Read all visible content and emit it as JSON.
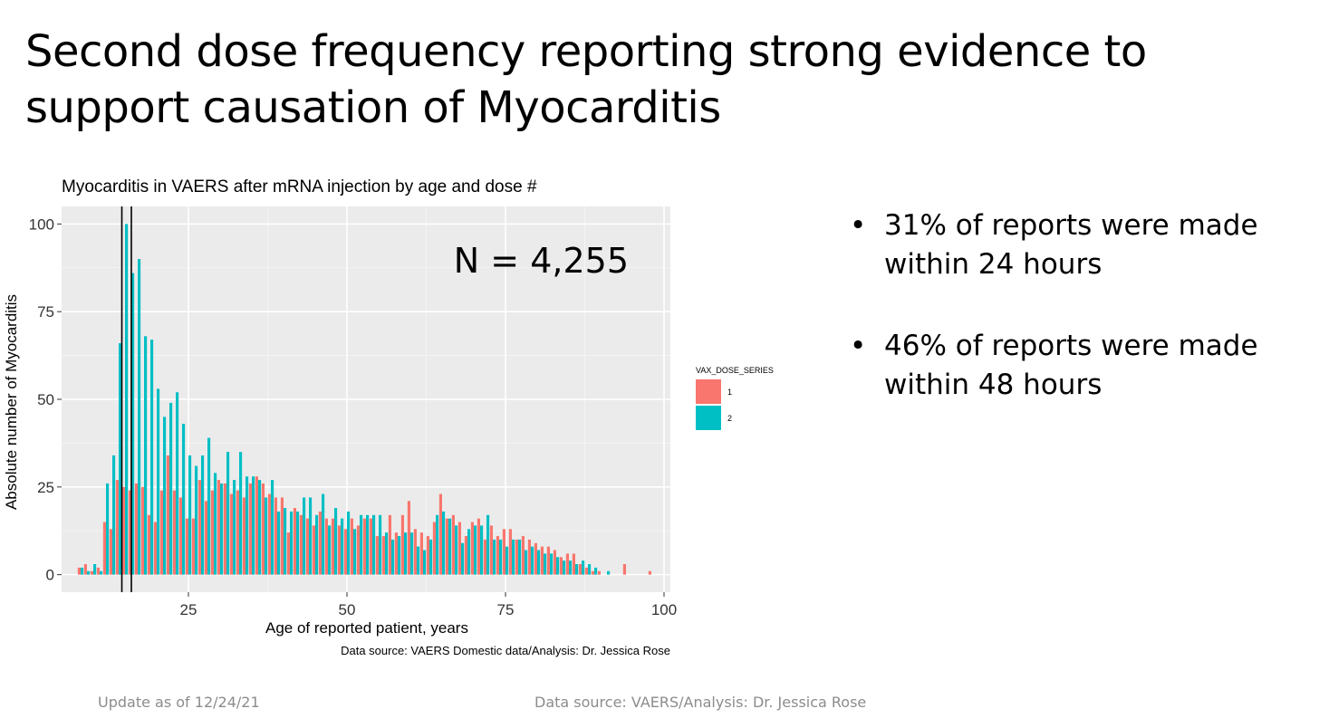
{
  "slide": {
    "title": "Second dose frequency reporting strong evidence to support causation of Myocarditis",
    "bullets": [
      "31% of reports were made within 24 hours",
      "46% of reports were made within 48 hours"
    ],
    "footer_left": "Update as of 12/24/21",
    "footer_right": "Data source: VAERS/Analysis: Dr. Jessica Rose",
    "bullet_glyph": "•"
  },
  "chart_data": {
    "type": "bar",
    "title": "Myocarditis in VAERS after mRNA injection by age and dose #",
    "xlabel": "Age of reported patient, years",
    "ylabel": "Absolute number of Myocarditis",
    "caption": "Data source: VAERS Domestic data/Analysis: Dr. Jessica Rose",
    "annotation": "N = 4,255",
    "xlim": [
      5,
      101
    ],
    "ylim": [
      -5,
      105
    ],
    "xticks": [
      25,
      50,
      75,
      100
    ],
    "yticks": [
      0,
      25,
      50,
      75,
      100
    ],
    "vlines": [
      14.5,
      16
    ],
    "legend": {
      "title": "VAX_DOSE_SERIES",
      "position": "right"
    },
    "grid": true,
    "panel_color": "#ebebeb",
    "series_colors": {
      "1": "#f8766d",
      "2": "#00bfc4"
    },
    "x": [
      8,
      9,
      10,
      11,
      12,
      13,
      14,
      15,
      16,
      17,
      18,
      19,
      20,
      21,
      22,
      23,
      24,
      25,
      26,
      27,
      28,
      29,
      30,
      31,
      32,
      33,
      34,
      35,
      36,
      37,
      38,
      39,
      40,
      41,
      42,
      43,
      44,
      45,
      46,
      47,
      48,
      49,
      50,
      51,
      52,
      53,
      54,
      55,
      56,
      57,
      58,
      59,
      60,
      61,
      62,
      63,
      64,
      65,
      66,
      67,
      68,
      69,
      70,
      71,
      72,
      73,
      74,
      75,
      76,
      77,
      78,
      79,
      80,
      81,
      82,
      83,
      84,
      85,
      86,
      87,
      88,
      89,
      90,
      91,
      94,
      98
    ],
    "series": [
      {
        "name": "1",
        "values": [
          2,
          3,
          1,
          2,
          15,
          13,
          27,
          25,
          24,
          26,
          25,
          17,
          15,
          24,
          34,
          24,
          22,
          16,
          16,
          27,
          21,
          24,
          27,
          26,
          23,
          24,
          22,
          26,
          28,
          26,
          23,
          22,
          22,
          12,
          19,
          17,
          16,
          14,
          18,
          16,
          16,
          14,
          13,
          16,
          14,
          16,
          16,
          11,
          11,
          17,
          12,
          17,
          21,
          13,
          12,
          11,
          15,
          23,
          16,
          17,
          15,
          11,
          15,
          16,
          10,
          14,
          11,
          13,
          13,
          10,
          11,
          10,
          9,
          8,
          8,
          7,
          5,
          6,
          6,
          3,
          2,
          1,
          1,
          0,
          3,
          1
        ]
      },
      {
        "name": "2",
        "values": [
          2,
          1,
          3,
          1,
          26,
          34,
          66,
          100,
          86,
          90,
          68,
          67,
          53,
          45,
          49,
          52,
          43,
          34,
          31,
          34,
          39,
          29,
          26,
          35,
          27,
          35,
          28,
          28,
          27,
          22,
          27,
          18,
          19,
          18,
          18,
          22,
          22,
          17,
          23,
          14,
          19,
          16,
          18,
          13,
          17,
          17,
          17,
          17,
          12,
          10,
          11,
          12,
          12,
          8,
          7,
          10,
          17,
          18,
          16,
          14,
          9,
          13,
          14,
          14,
          17,
          10,
          10,
          8,
          10,
          10,
          7,
          8,
          7,
          6,
          6,
          5,
          4,
          4,
          3,
          4,
          3,
          2,
          0,
          1,
          0,
          0
        ]
      }
    ]
  }
}
